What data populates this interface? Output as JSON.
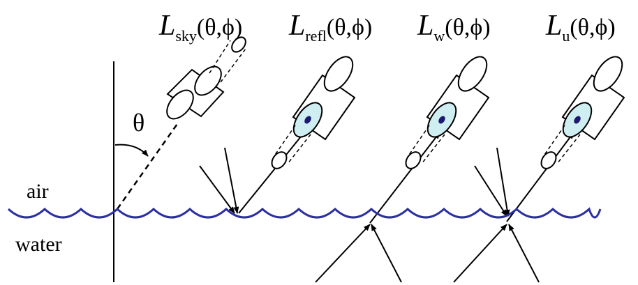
{
  "labels": {
    "sky": {
      "symbol": "L",
      "subscript": "sky",
      "args": "(θ,ϕ)"
    },
    "refl": {
      "symbol": "L",
      "subscript": "refl",
      "args": "(θ,ϕ)"
    },
    "w": {
      "symbol": "L",
      "subscript": "w",
      "args": "(θ,ϕ)"
    },
    "u": {
      "symbol": "L",
      "subscript": "u",
      "args": "(θ,ϕ)"
    }
  },
  "angle_symbol": "θ",
  "medium_labels": {
    "air": "air",
    "water": "water"
  },
  "colors": {
    "water_surface": "#2b2fa0",
    "lens_fill": "#cfeef2",
    "lens_center": "#1a1a6e",
    "ink": "#000000"
  }
}
